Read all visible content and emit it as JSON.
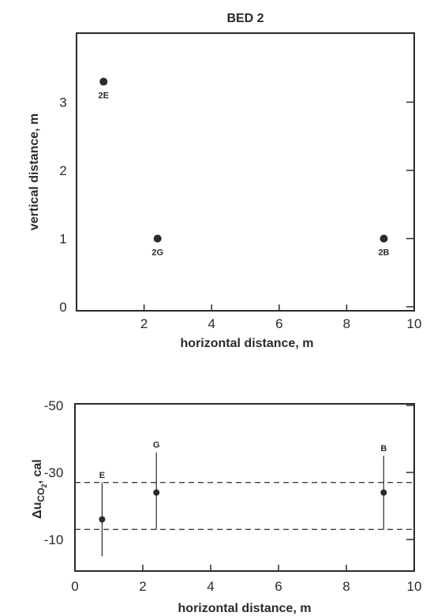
{
  "chart_data": [
    {
      "type": "scatter",
      "title": "BED 2",
      "xlabel": "horizontal distance, m",
      "ylabel": "vertical distance, m",
      "xlim": [
        0,
        10
      ],
      "ylim": [
        -0.2,
        4.0
      ],
      "xticks": [
        2,
        4,
        6,
        8,
        10
      ],
      "yticks": [
        0,
        1,
        2,
        3
      ],
      "xtick_labels": [
        "2",
        "4",
        "6",
        "8",
        "10"
      ],
      "ytick_labels": [
        "0",
        "1",
        "2",
        "3"
      ],
      "points": [
        {
          "label": "2E",
          "x": 0.8,
          "y": 3.3
        },
        {
          "label": "2G",
          "x": 2.4,
          "y": 1.0
        },
        {
          "label": "2B",
          "x": 9.1,
          "y": 1.0
        }
      ]
    },
    {
      "type": "scatter",
      "title": "",
      "xlabel": "horizontal distance, m",
      "ylabel_main": "Δu",
      "ylabel_sub": "CO",
      "ylabel_subsub": "2",
      "ylabel_tail": ", cal",
      "xlim": [
        0,
        10
      ],
      "ylim": [
        0,
        -50
      ],
      "y_inverted": true,
      "xticks": [
        0,
        2,
        4,
        6,
        8,
        10
      ],
      "yticks": [
        -50,
        -30,
        -10
      ],
      "xtick_labels": [
        "0",
        "2",
        "4",
        "6",
        "8",
        "10"
      ],
      "ytick_labels": [
        "-50",
        "-30",
        "-10"
      ],
      "points": [
        {
          "label": "E",
          "x": 0.8,
          "y": -16,
          "err_low": -5,
          "err_high": -27
        },
        {
          "label": "G",
          "x": 2.4,
          "y": -24,
          "err_low": -13,
          "err_high": -36
        },
        {
          "label": "B",
          "x": 9.1,
          "y": -24,
          "err_low": -13,
          "err_high": -35
        }
      ],
      "reference_lines": [
        {
          "y": -27,
          "style": "dashed"
        },
        {
          "y": -13,
          "style": "dashed"
        }
      ]
    }
  ]
}
